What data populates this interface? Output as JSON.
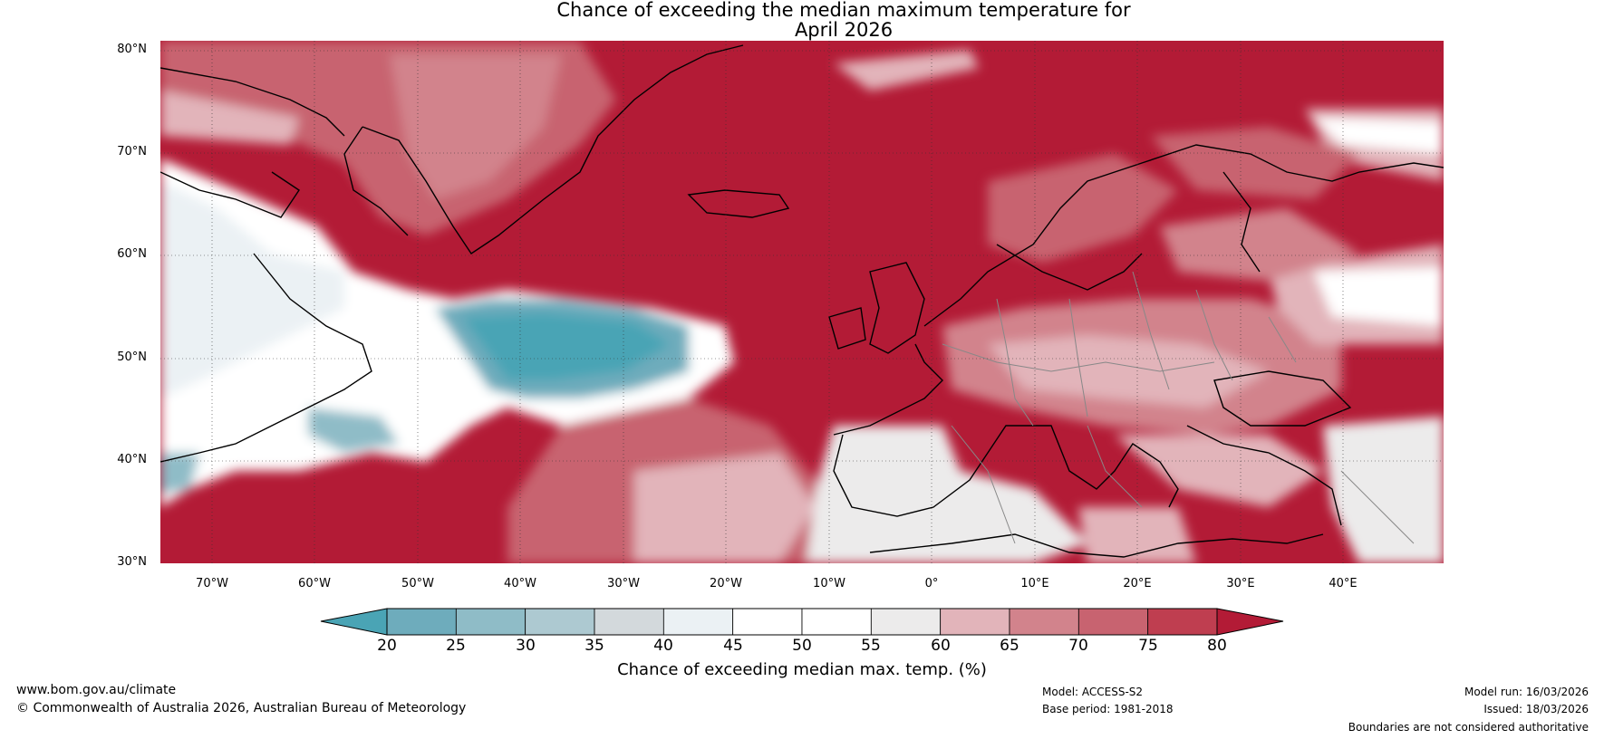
{
  "title": {
    "line1": "Chance of exceeding the median maximum temperature for",
    "line2": "April 2026"
  },
  "map": {
    "lat_labels": [
      "80°N",
      "70°N",
      "60°N",
      "50°N",
      "40°N",
      "30°N"
    ],
    "lon_labels": [
      "70°W",
      "60°W",
      "50°W",
      "40°W",
      "30°W",
      "20°W",
      "10°W",
      "0°",
      "10°E",
      "20°E",
      "30°E",
      "40°E"
    ],
    "lat_range": [
      30,
      81
    ],
    "lon_range": [
      -75,
      50
    ]
  },
  "colorbar": {
    "label": "Chance of exceeding median max. temp. (%)",
    "ticks": [
      "20",
      "25",
      "30",
      "35",
      "40",
      "45",
      "50",
      "55",
      "60",
      "65",
      "70",
      "75",
      "80"
    ],
    "under_color": "#4aa4b5",
    "over_color": "#b31b36",
    "colors": [
      "#6eacbc",
      "#8fbcc7",
      "#adc9d1",
      "#d3d9dc",
      "#ebf1f4",
      "#ffffff",
      "#ffffff",
      "#ecebeb",
      "#e2b4ba",
      "#d2838c",
      "#c86370",
      "#bf3e50"
    ]
  },
  "footer": {
    "website": "www.bom.gov.au/climate",
    "copyright": "© Commonwealth of Australia 2026, Australian Bureau of Meteorology",
    "model": "Model: ACCESS-S2",
    "base_period": "Base period: 1981-2018",
    "model_run": "Model run: 16/03/2026",
    "issued": "Issued: 18/03/2026",
    "disclaimer": "Boundaries are not considered authoritative"
  }
}
